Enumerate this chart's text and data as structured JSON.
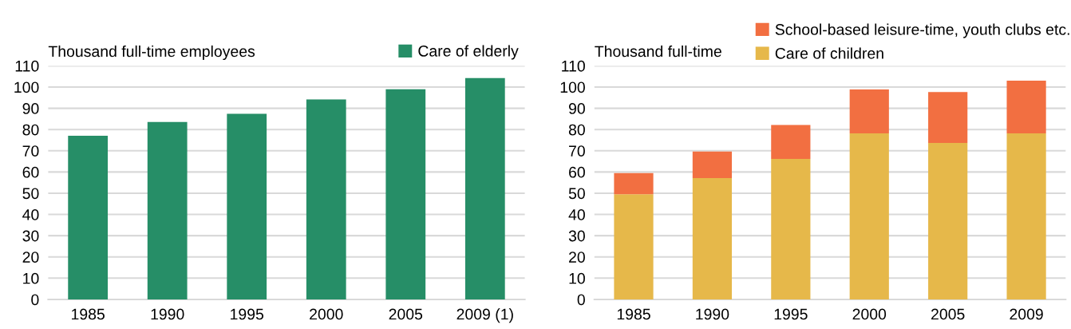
{
  "chart_data": [
    {
      "type": "bar",
      "ylabel": "Thousand full-time employees",
      "categories": [
        "1985",
        "1990",
        "1995",
        "2000",
        "2005",
        "2009 (1)"
      ],
      "series": [
        {
          "name": "Care of elderly",
          "color": "#268e67",
          "values": [
            77.1,
            83.5,
            87.4,
            94.2,
            99.0,
            104.2
          ]
        }
      ],
      "ylim": [
        0,
        110
      ],
      "yticks": [
        0,
        10,
        20,
        30,
        40,
        50,
        60,
        70,
        80,
        90,
        100,
        110
      ],
      "grid": "y",
      "legend": "top right"
    },
    {
      "type": "bar",
      "stacked": true,
      "ylabel": "Thousand full-time",
      "categories": [
        "1985",
        "1990",
        "1995",
        "2000",
        "2005",
        "2009"
      ],
      "series": [
        {
          "name": "Care of children",
          "color": "#e6b84a",
          "values": [
            49.5,
            57.1,
            66.2,
            78.2,
            73.7,
            78.2
          ]
        },
        {
          "name": "School-based leisure-time, youth clubs etc.",
          "color": "#f26f41",
          "values": [
            10.0,
            12.5,
            15.9,
            20.7,
            23.9,
            24.8
          ]
        }
      ],
      "ylim": [
        0,
        110
      ],
      "yticks": [
        0,
        10,
        20,
        30,
        40,
        50,
        60,
        70,
        80,
        90,
        100,
        110
      ],
      "grid": "y",
      "legend": "top"
    }
  ]
}
